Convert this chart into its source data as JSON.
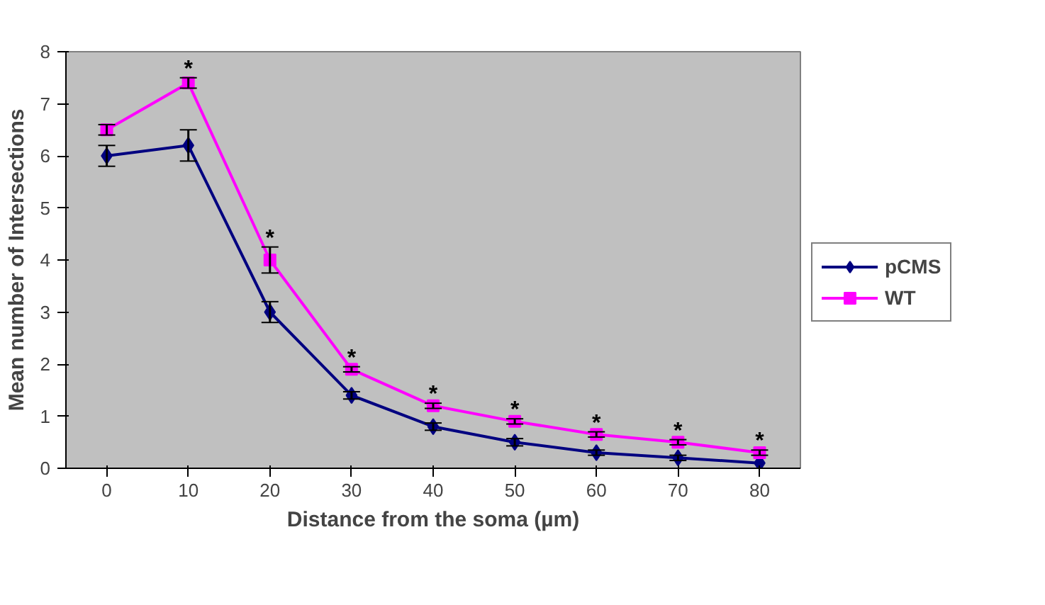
{
  "chart_data": {
    "type": "line",
    "xlabel": "Distance from the soma (µm)",
    "ylabel": "Mean number of Intersections",
    "categories": [
      "0",
      "10",
      "20",
      "30",
      "40",
      "50",
      "60",
      "70",
      "80"
    ],
    "ylim": [
      0,
      8
    ],
    "yticks": [
      0,
      1,
      2,
      3,
      4,
      5,
      6,
      7,
      8
    ],
    "grid": false,
    "legend": "right",
    "series": [
      {
        "name": "pCMS",
        "color": "#000080",
        "marker": "diamond",
        "values": [
          6.0,
          6.2,
          3.0,
          1.4,
          0.8,
          0.5,
          0.3,
          0.2,
          0.1
        ],
        "errors": [
          0.2,
          0.3,
          0.2,
          0.07,
          0.07,
          0.07,
          0.05,
          0.05,
          null
        ]
      },
      {
        "name": "WT",
        "color": "#ff00ff",
        "marker": "square",
        "values": [
          6.5,
          7.4,
          4.0,
          1.9,
          1.2,
          0.9,
          0.65,
          0.5,
          0.3
        ],
        "errors": [
          0.1,
          0.1,
          0.25,
          0.05,
          0.05,
          0.05,
          0.05,
          0.05,
          0.05
        ]
      }
    ],
    "annotations": [
      "*",
      "*",
      "*",
      "*",
      "*",
      "*",
      "*",
      "*"
    ]
  }
}
